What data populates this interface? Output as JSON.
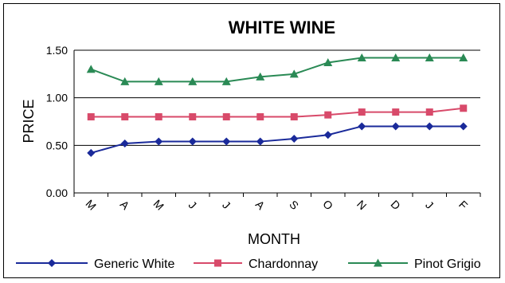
{
  "chart_data": {
    "type": "line",
    "title": "WHITE WINE",
    "xlabel": "MONTH",
    "ylabel": "PRICE",
    "categories": [
      "M",
      "A",
      "M",
      "J",
      "J",
      "A",
      "S",
      "O",
      "N",
      "D",
      "J",
      "F"
    ],
    "ylim": [
      0,
      1.5
    ],
    "yticks": [
      "0.00",
      "0.50",
      "1.00",
      "1.50"
    ],
    "grid": true,
    "legend_position": "bottom",
    "series": [
      {
        "name": "Generic White",
        "color": "#1a2a9a",
        "marker": "diamond",
        "values": [
          0.42,
          0.52,
          0.54,
          0.54,
          0.54,
          0.54,
          0.57,
          0.61,
          0.7,
          0.7,
          0.7,
          0.7
        ]
      },
      {
        "name": "Chardonnay",
        "color": "#d84a6a",
        "marker": "square",
        "values": [
          0.8,
          0.8,
          0.8,
          0.8,
          0.8,
          0.8,
          0.8,
          0.82,
          0.85,
          0.85,
          0.85,
          0.89
        ]
      },
      {
        "name": "Pinot Grigio",
        "color": "#2a8a55",
        "marker": "triangle",
        "values": [
          1.3,
          1.17,
          1.17,
          1.17,
          1.17,
          1.22,
          1.25,
          1.37,
          1.42,
          1.42,
          1.42,
          1.42
        ]
      }
    ]
  }
}
